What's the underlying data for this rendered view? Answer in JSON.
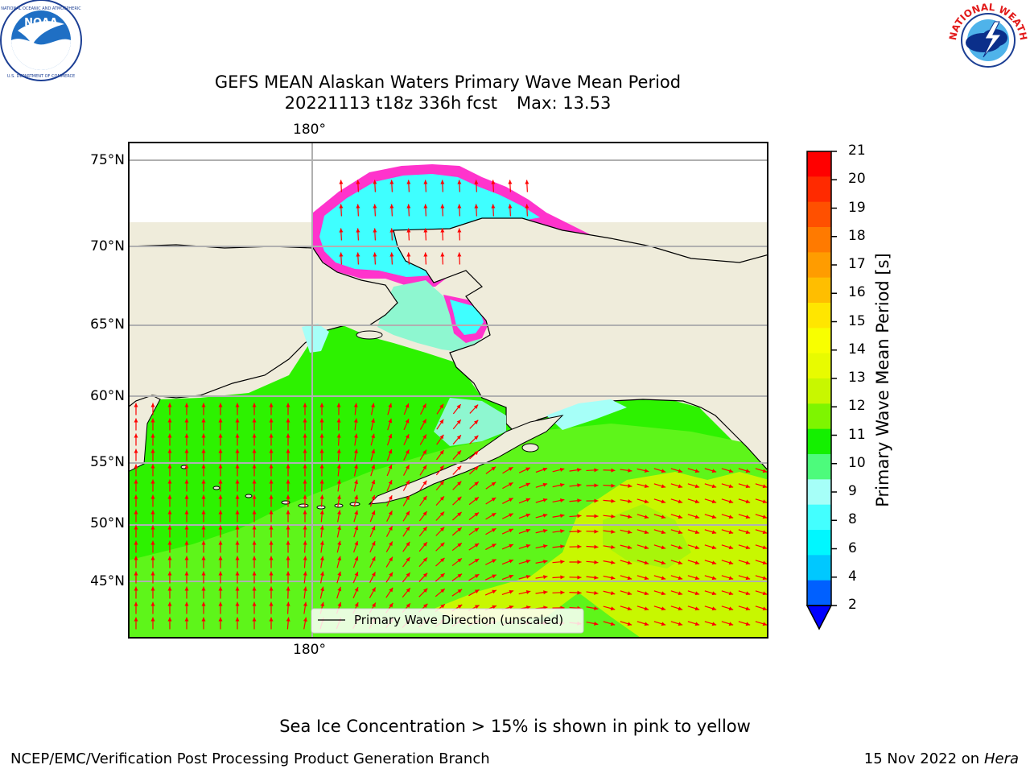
{
  "title": {
    "line1": "GEFS MEAN Alaskan Waters Primary Wave Mean Period",
    "line2_forecast": "20221113 t18z 336h fcst",
    "line2_max": "Max: 13.53"
  },
  "logos": {
    "left": {
      "text": "NOAA",
      "ring_text": "NATIONAL OCEANIC AND ATMOSPHERIC ADMINISTRATION · U.S. DEPARTMENT OF COMMERCE"
    },
    "right": {
      "ring_text": "NATIONAL WEATHER SERVICE"
    }
  },
  "map": {
    "lon_label_top": "180°",
    "lon_label_bottom": "180°",
    "lat_labels": [
      "75°N",
      "70°N",
      "65°N",
      "60°N",
      "55°N",
      "50°N",
      "45°N"
    ],
    "legend": "Primary Wave Direction (unscaled)",
    "colors": {
      "land": "#efecdb",
      "ocean_green": "#2df200",
      "ocean_light_green": "#5ef51a",
      "ocean_yellow_green": "#c8f700",
      "ocean_cyan": "#3fffff",
      "sea_ice_pink": "#ff33cc",
      "sea_ice_orange": "#ffa040",
      "arrow": "#ff0000",
      "grid": "#b0b0b0"
    }
  },
  "colorbar": {
    "label": "Primary Wave Mean Period [s]",
    "ticks": [
      "21",
      "20",
      "19",
      "18",
      "17",
      "16",
      "15",
      "14",
      "13",
      "12",
      "11",
      "10",
      "9",
      "8",
      "6",
      "4",
      "2"
    ],
    "colors": [
      "#ff0000",
      "#ff2a00",
      "#ff5000",
      "#ff7a00",
      "#ff9c00",
      "#ffbe00",
      "#ffe600",
      "#f8ff00",
      "#e8fb00",
      "#c8f700",
      "#7ef500",
      "#14f000",
      "#4dfb7c",
      "#a6fff8",
      "#43ffff",
      "#00f7ff",
      "#00c8ff",
      "#0060ff"
    ],
    "under_color": "#0000ff"
  },
  "footer": {
    "note": "Sea Ice Concentration > 15% is shown in pink to yellow",
    "left": "NCEP/EMC/Verification Post Processing Product Generation Branch",
    "date": "15 Nov 2022 on",
    "machine": "Hera"
  }
}
